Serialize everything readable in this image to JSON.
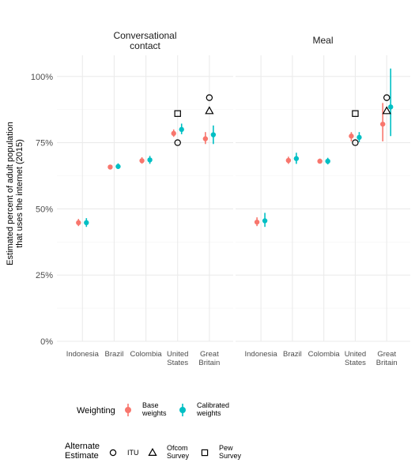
{
  "chart_data": {
    "type": "scatter",
    "ylabel_lines": [
      "Estimated percent of adult population",
      "that uses the internet (2015)"
    ],
    "ylim": [
      0,
      1.08
    ],
    "yticks": [
      0,
      0.25,
      0.5,
      0.75,
      1.0
    ],
    "ytick_labels": [
      "0%",
      "25%",
      "50%",
      "75%",
      "100%"
    ],
    "grid": true,
    "categories": [
      "Indonesia",
      "Brazil",
      "Colombia",
      "United States",
      "Great Britain"
    ],
    "category_label_lines": [
      [
        "Indonesia"
      ],
      [
        "Brazil"
      ],
      [
        "Colombia"
      ],
      [
        "United",
        "States"
      ],
      [
        "Great",
        "Britain"
      ]
    ],
    "colors": {
      "base": "#f8766d",
      "calibrated": "#00bfc4",
      "alt": "#000000",
      "grid": "#ebebeb"
    },
    "panels": [
      {
        "title_lines": [
          "Conversational",
          "contact"
        ],
        "base": [
          {
            "y": 0.448,
            "lo": 0.435,
            "hi": 0.462
          },
          {
            "y": 0.658,
            "lo": 0.652,
            "hi": 0.665
          },
          {
            "y": 0.682,
            "lo": 0.671,
            "hi": 0.695
          },
          {
            "y": 0.785,
            "lo": 0.772,
            "hi": 0.8
          },
          {
            "y": 0.765,
            "lo": 0.745,
            "hi": 0.79
          }
        ],
        "calibrated": [
          {
            "y": 0.448,
            "lo": 0.432,
            "hi": 0.465
          },
          {
            "y": 0.66,
            "lo": 0.652,
            "hi": 0.672
          },
          {
            "y": 0.685,
            "lo": 0.67,
            "hi": 0.7
          },
          {
            "y": 0.8,
            "lo": 0.782,
            "hi": 0.822
          },
          {
            "y": 0.78,
            "lo": 0.745,
            "hi": 0.815
          }
        ]
      },
      {
        "title_lines": [
          "Meal"
        ],
        "base": [
          {
            "y": 0.45,
            "lo": 0.435,
            "hi": 0.468
          },
          {
            "y": 0.683,
            "lo": 0.67,
            "hi": 0.697
          },
          {
            "y": 0.68,
            "lo": 0.672,
            "hi": 0.69
          },
          {
            "y": 0.775,
            "lo": 0.755,
            "hi": 0.79
          },
          {
            "y": 0.82,
            "lo": 0.755,
            "hi": 0.9
          }
        ],
        "calibrated": [
          {
            "y": 0.455,
            "lo": 0.432,
            "hi": 0.485
          },
          {
            "y": 0.69,
            "lo": 0.67,
            "hi": 0.712
          },
          {
            "y": 0.68,
            "lo": 0.668,
            "hi": 0.693
          },
          {
            "y": 0.77,
            "lo": 0.752,
            "hi": 0.79
          },
          {
            "y": 0.885,
            "lo": 0.775,
            "hi": 1.03
          }
        ]
      }
    ],
    "alternate_estimates": [
      {
        "source": "ITU",
        "shape": "circle",
        "values": {
          "United States": 0.75,
          "Great Britain": 0.92
        }
      },
      {
        "source": "Ofcom Survey",
        "shape": "triangle",
        "values": {
          "Great Britain": 0.87
        }
      },
      {
        "source": "Pew Survey",
        "shape": "square",
        "values": {
          "United States": 0.86
        }
      }
    ],
    "legend": {
      "weighting": {
        "title": "Weighting",
        "items": [
          {
            "key": "base",
            "label_lines": [
              "Base",
              "weights"
            ]
          },
          {
            "key": "calibrated",
            "label_lines": [
              "Calibrated",
              "weights"
            ]
          }
        ]
      },
      "alternate": {
        "title_lines": [
          "Alternate",
          "Estimate"
        ],
        "items": [
          {
            "shape": "circle",
            "label_lines": [
              "ITU"
            ]
          },
          {
            "shape": "triangle",
            "label_lines": [
              "Ofcom",
              "Survey"
            ]
          },
          {
            "shape": "square",
            "label_lines": [
              "Pew",
              "Survey"
            ]
          }
        ],
        "placement": "bottom"
      }
    }
  }
}
